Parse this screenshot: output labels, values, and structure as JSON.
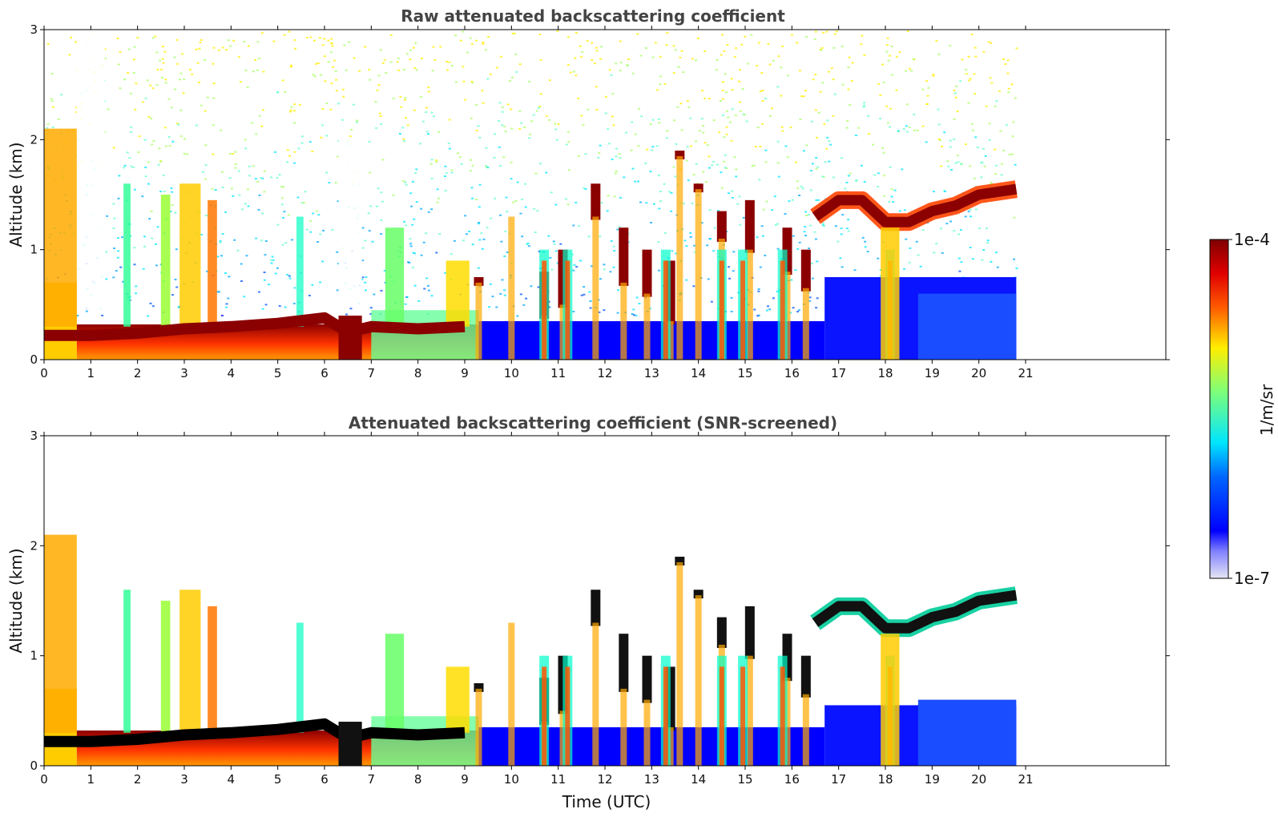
{
  "chart_data": [
    {
      "type": "heatmap",
      "title": "Raw attenuated backscattering coefficient",
      "xlabel": "",
      "ylabel": "Altitude (km)",
      "xlim": [
        0,
        24
      ],
      "ylim": [
        0,
        3
      ],
      "x_ticks": [
        "0",
        "1",
        "2",
        "3",
        "4",
        "5",
        "6",
        "7",
        "8",
        "9",
        "10",
        "11",
        "12",
        "13",
        "14",
        "15",
        "16",
        "17",
        "18",
        "19",
        "20",
        "21"
      ],
      "y_ticks": [
        "0",
        "1",
        "2",
        "3"
      ],
      "data_end_time": 20.8,
      "screened": false,
      "features": {
        "boundary_layer_top": [
          {
            "t": 0.0,
            "z": 0.22
          },
          {
            "t": 1.0,
            "z": 0.22
          },
          {
            "t": 2.0,
            "z": 0.24
          },
          {
            "t": 3.0,
            "z": 0.28
          },
          {
            "t": 4.0,
            "z": 0.3
          },
          {
            "t": 5.0,
            "z": 0.33
          },
          {
            "t": 6.0,
            "z": 0.38
          },
          {
            "t": 6.5,
            "z": 0.25
          },
          {
            "t": 7.0,
            "z": 0.3
          },
          {
            "t": 8.0,
            "z": 0.28
          },
          {
            "t": 9.0,
            "z": 0.3
          }
        ],
        "cloud_layer": [
          {
            "t": 16.5,
            "z": 1.3
          },
          {
            "t": 17.0,
            "z": 1.45
          },
          {
            "t": 17.5,
            "z": 1.45
          },
          {
            "t": 18.0,
            "z": 1.25
          },
          {
            "t": 18.5,
            "z": 1.25
          },
          {
            "t": 19.0,
            "z": 1.35
          },
          {
            "t": 19.5,
            "z": 1.4
          },
          {
            "t": 20.0,
            "z": 1.5
          },
          {
            "t": 20.8,
            "z": 1.55
          }
        ]
      }
    },
    {
      "type": "heatmap",
      "title": "Attenuated backscattering coefficient (SNR-screened)",
      "xlabel": "Time (UTC)",
      "ylabel": "Altitude (km)",
      "xlim": [
        0,
        24
      ],
      "ylim": [
        0,
        3
      ],
      "x_ticks": [
        "0",
        "1",
        "2",
        "3",
        "4",
        "5",
        "6",
        "7",
        "8",
        "9",
        "10",
        "11",
        "12",
        "13",
        "14",
        "15",
        "16",
        "17",
        "18",
        "19",
        "20",
        "21"
      ],
      "y_ticks": [
        "0",
        "1",
        "2",
        "3"
      ],
      "data_end_time": 20.8,
      "screened": true
    }
  ],
  "colorbar": {
    "label": "1/m/sr",
    "min_label": "1e-7",
    "max_label": "1e-4",
    "scale": "log",
    "range": [
      1e-07,
      0.0001
    ],
    "colormap": [
      "#e6e6f5",
      "#0000ff",
      "#00e5ff",
      "#7dff7a",
      "#ffee00",
      "#ff5a00",
      "#e00000",
      "#7f0000"
    ]
  }
}
